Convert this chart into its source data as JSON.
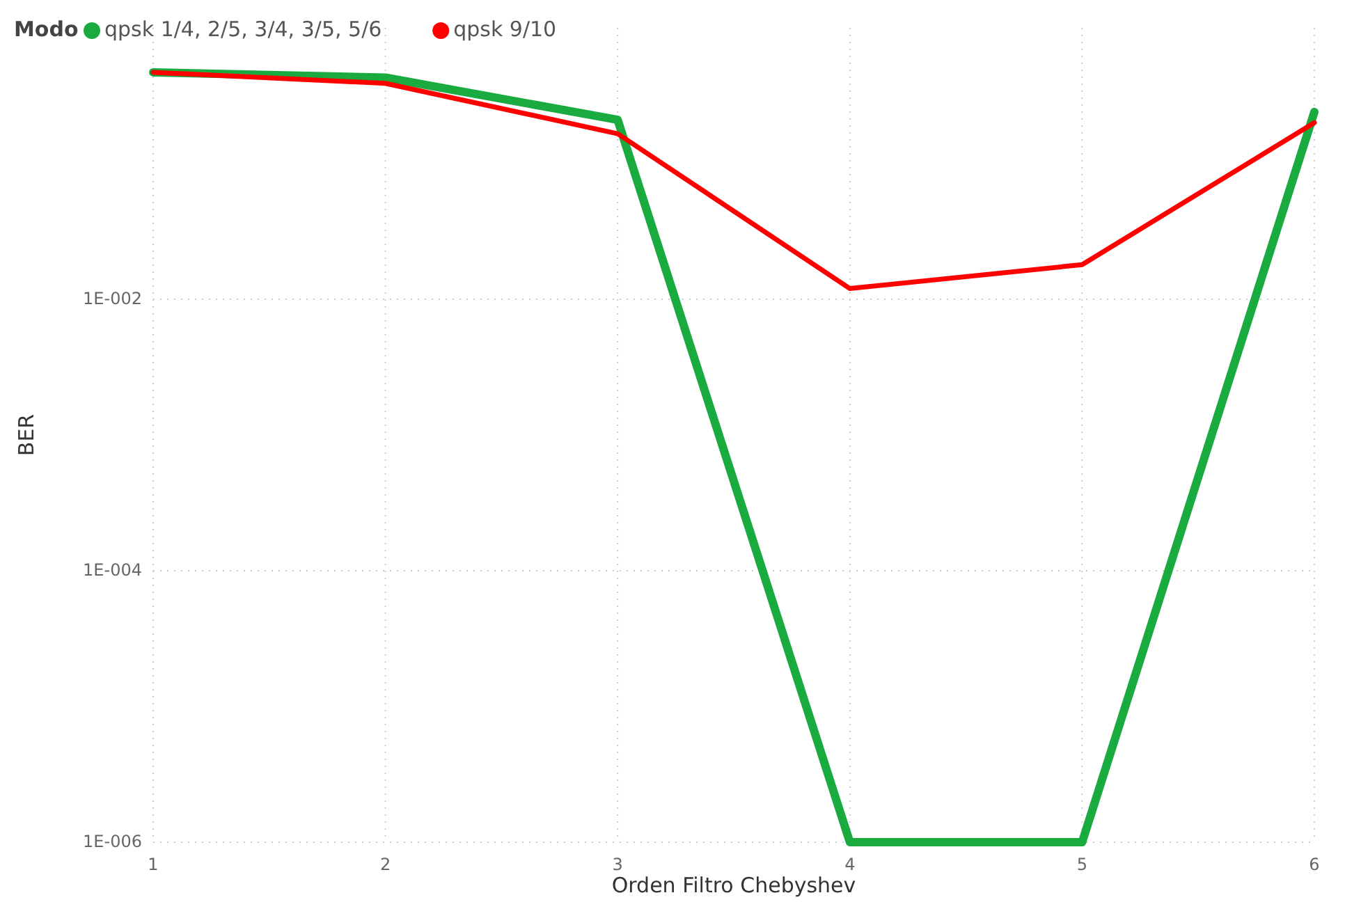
{
  "chart_data": {
    "type": "line",
    "xlabel": "Orden Filtro Chebyshev",
    "ylabel": "BER",
    "legend_title": "Modo",
    "legend": "top left",
    "log": "y",
    "grid": true,
    "line_style": "solid",
    "marker": "none",
    "x": [
      1,
      2,
      3,
      4,
      5,
      6
    ],
    "xlim": [
      1,
      6
    ],
    "xticks": [
      1,
      2,
      3,
      4,
      5,
      6
    ],
    "ylim": [
      1e-06,
      1
    ],
    "yticks": [
      {
        "value": 0.01,
        "label": "1E-002"
      },
      {
        "value": 0.0001,
        "label": "1E-004"
      },
      {
        "value": 1e-06,
        "label": "1E-006"
      }
    ],
    "series": [
      {
        "name": "qpsk 1/4, 2/5, 3/4, 3/5, 5/6",
        "color": "#1aab40",
        "values": [
          0.47,
          0.43,
          0.21,
          1e-06,
          1e-06,
          0.24
        ]
      },
      {
        "name": "qpsk 9/10",
        "color": "#ff0000",
        "values": [
          0.47,
          0.39,
          0.166,
          0.012,
          0.018,
          0.2
        ]
      }
    ]
  }
}
